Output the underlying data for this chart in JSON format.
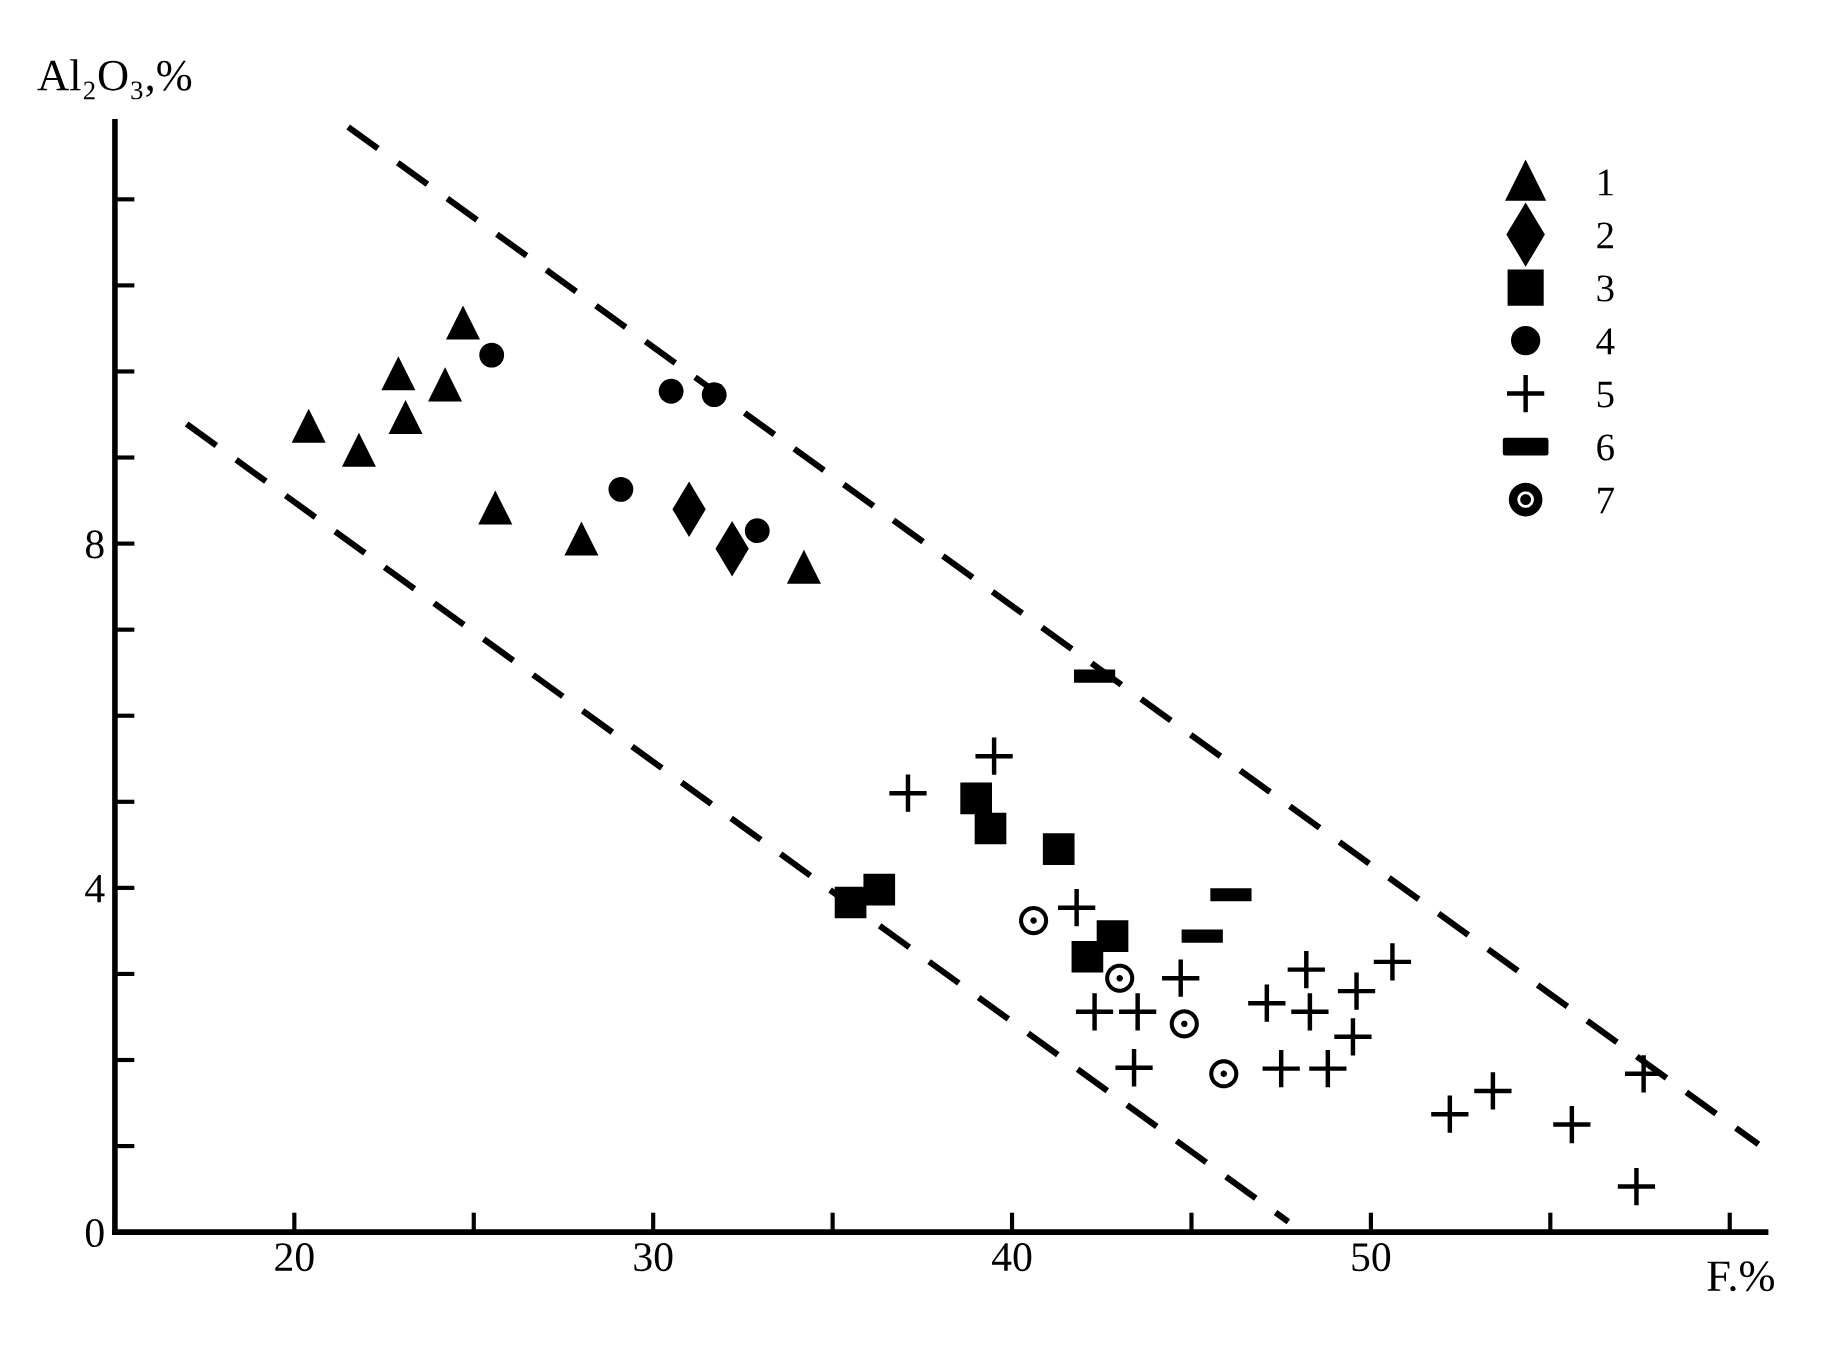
{
  "chart_data": {
    "type": "scatter",
    "ylabel": "Al₂O₃,%",
    "xlabel": "F.%",
    "xlim": [
      15,
      61
    ],
    "ylim": [
      0,
      12.9
    ],
    "xticks": [
      {
        "value": 15,
        "label": null
      },
      20,
      {
        "value": 25,
        "label": null
      },
      30,
      {
        "value": 35,
        "label": null
      },
      40,
      {
        "value": 45,
        "label": null
      },
      50,
      {
        "value": 55,
        "label": null
      },
      {
        "value": 60,
        "label": null
      }
    ],
    "yticks": [
      0,
      {
        "value": 1,
        "label": null
      },
      {
        "value": 2,
        "label": null
      },
      {
        "value": 3,
        "label": null
      },
      4,
      {
        "value": 5,
        "label": null
      },
      {
        "value": 6,
        "label": null
      },
      {
        "value": 7,
        "label": null
      },
      8,
      {
        "value": 9,
        "label": null
      },
      {
        "value": 10,
        "label": null
      },
      {
        "value": 11,
        "label": null
      },
      {
        "value": 12,
        "label": null
      }
    ],
    "legend": "top right",
    "grid": false,
    "series": [
      {
        "name": "1",
        "color": "#000000",
        "marker": "triangle",
        "x": [
          20.4,
          21.8,
          22.9,
          23.1,
          24.2,
          24.7,
          25.6,
          28.0,
          34.2
        ],
        "values": [
          9.37,
          9.09,
          9.98,
          9.47,
          9.85,
          10.57,
          8.42,
          8.06,
          7.73
        ]
      },
      {
        "name": "2",
        "color": "#000000",
        "marker": "diamond",
        "x": [
          31.0,
          32.2
        ],
        "values": [
          8.4,
          7.94
        ]
      },
      {
        "name": "3",
        "color": "#000000",
        "marker": "square",
        "x": [
          35.5,
          36.3,
          39.0,
          39.4,
          41.3,
          42.8,
          42.1
        ],
        "values": [
          3.83,
          3.98,
          5.04,
          4.69,
          4.45,
          3.44,
          3.2
        ]
      },
      {
        "name": "4",
        "color": "#000000",
        "marker": "circle",
        "x": [
          25.5,
          30.5,
          31.7,
          29.1,
          32.9
        ],
        "values": [
          10.19,
          9.77,
          9.73,
          8.63,
          8.15
        ]
      },
      {
        "name": "5",
        "color": "#000000",
        "marker": "cross",
        "x": [
          37.1,
          39.5,
          41.8,
          42.3,
          43.5,
          43.4,
          44.7,
          47.1,
          48.2,
          48.3,
          47.5,
          48.8,
          49.6,
          49.5,
          50.6,
          52.2,
          53.4,
          55.6,
          57.6,
          57.4
        ],
        "values": [
          5.1,
          5.53,
          3.77,
          2.56,
          2.56,
          1.91,
          2.95,
          2.66,
          3.05,
          2.56,
          1.9,
          1.9,
          2.8,
          2.27,
          3.14,
          1.37,
          1.64,
          1.25,
          1.84,
          0.53
        ]
      },
      {
        "name": "6",
        "color": "#000000",
        "x": [
          42.3,
          46.1,
          45.3
        ],
        "values": [
          6.46,
          3.92,
          3.44
        ]
      },
      {
        "name": "7",
        "color": "#000000",
        "marker": "circled_dot",
        "x": [
          40.6,
          43.0,
          44.8,
          45.9
        ],
        "values": [
          3.62,
          2.95,
          2.42,
          1.84
        ]
      },
      {
        "type": "line",
        "color": "#000000",
        "line_style": "dashed",
        "marker": "none",
        "x": [
          21.5,
          60.8
        ],
        "values": [
          12.84,
          1.02
        ]
      },
      {
        "type": "line",
        "color": "#000000",
        "line_style": "dashed",
        "marker": "none",
        "x": [
          17.0,
          47.7
        ],
        "values": [
          9.39,
          0.12
        ]
      }
    ]
  }
}
